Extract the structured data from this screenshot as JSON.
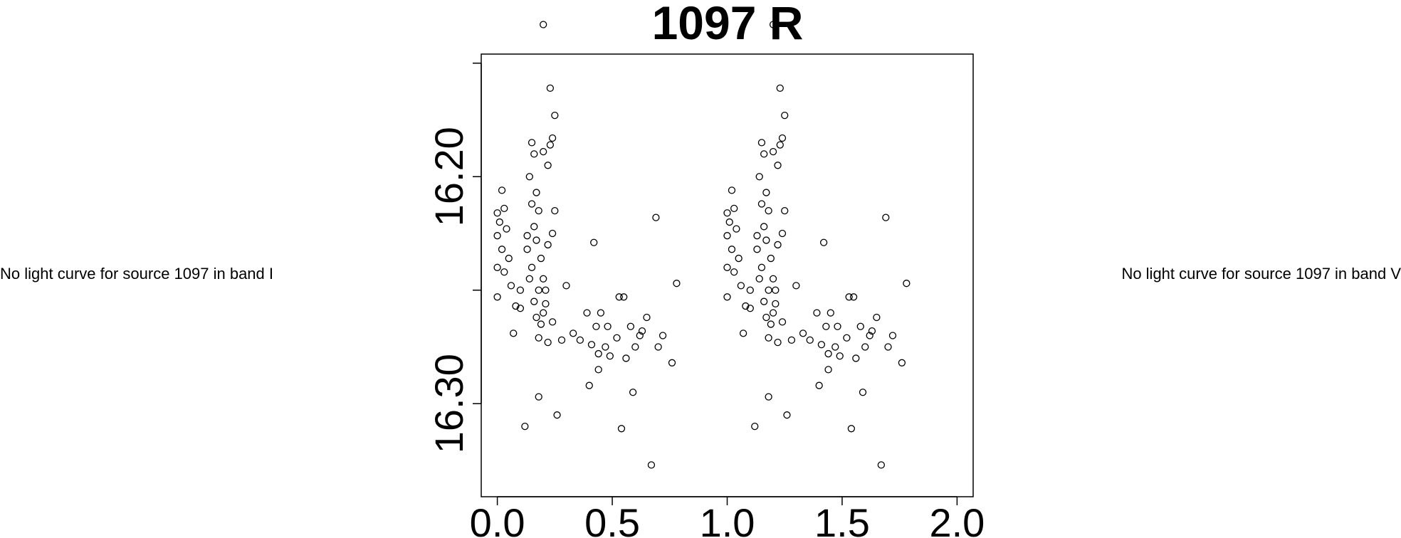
{
  "notes": {
    "left": "No light curve for source 1097 in band I",
    "right": "No light curve for source 1097 in band V"
  },
  "chart_data": {
    "type": "scatter",
    "title": "1097 R",
    "xlabel": "",
    "ylabel": "",
    "xlim": [
      -0.07,
      2.07
    ],
    "ylim": [
      16.341,
      16.146
    ],
    "y_inverted": true,
    "x_ticks": [
      "0.0",
      "0.5",
      "1.0",
      "1.5",
      "2.0"
    ],
    "x_tick_values": [
      0.0,
      0.5,
      1.0,
      1.5,
      2.0
    ],
    "y_ticks": [
      "16.20",
      "16.30"
    ],
    "y_tick_values": [
      16.2,
      16.3
    ],
    "y_minor_ticks": [
      16.15,
      16.25
    ],
    "grid": false,
    "marker": "open-circle",
    "phase_period": 1.0,
    "base_points": [
      [
        0.2,
        16.133
      ],
      [
        0.23,
        16.161
      ],
      [
        0.25,
        16.173
      ],
      [
        0.26,
        16.305
      ],
      [
        0.18,
        16.297
      ],
      [
        0.12,
        16.31
      ],
      [
        0.54,
        16.311
      ],
      [
        0.59,
        16.295
      ],
      [
        0.44,
        16.285
      ],
      [
        0.67,
        16.327
      ],
      [
        0.69,
        16.218
      ],
      [
        0.42,
        16.229
      ],
      [
        0.02,
        16.206
      ],
      [
        0.03,
        16.214
      ],
      [
        0.0,
        16.216
      ],
      [
        0.01,
        16.22
      ],
      [
        0.04,
        16.223
      ],
      [
        0.0,
        16.226
      ],
      [
        0.02,
        16.232
      ],
      [
        0.05,
        16.236
      ],
      [
        0.0,
        16.24
      ],
      [
        0.03,
        16.242
      ],
      [
        0.06,
        16.248
      ],
      [
        0.0,
        16.253
      ],
      [
        0.08,
        16.257
      ],
      [
        0.07,
        16.269
      ],
      [
        0.1,
        16.25
      ],
      [
        0.1,
        16.258
      ],
      [
        0.13,
        16.226
      ],
      [
        0.13,
        16.232
      ],
      [
        0.15,
        16.185
      ],
      [
        0.16,
        16.19
      ],
      [
        0.14,
        16.2
      ],
      [
        0.17,
        16.207
      ],
      [
        0.15,
        16.212
      ],
      [
        0.18,
        16.215
      ],
      [
        0.16,
        16.222
      ],
      [
        0.17,
        16.228
      ],
      [
        0.19,
        16.236
      ],
      [
        0.15,
        16.24
      ],
      [
        0.14,
        16.245
      ],
      [
        0.18,
        16.25
      ],
      [
        0.16,
        16.255
      ],
      [
        0.2,
        16.26
      ],
      [
        0.19,
        16.265
      ],
      [
        0.17,
        16.262
      ],
      [
        0.18,
        16.271
      ],
      [
        0.21,
        16.256
      ],
      [
        0.2,
        16.189
      ],
      [
        0.22,
        16.195
      ],
      [
        0.22,
        16.23
      ],
      [
        0.2,
        16.245
      ],
      [
        0.21,
        16.25
      ],
      [
        0.24,
        16.183
      ],
      [
        0.23,
        16.186
      ],
      [
        0.25,
        16.215
      ],
      [
        0.24,
        16.225
      ],
      [
        0.22,
        16.273
      ],
      [
        0.24,
        16.264
      ],
      [
        0.28,
        16.272
      ],
      [
        0.3,
        16.248
      ],
      [
        0.33,
        16.269
      ],
      [
        0.36,
        16.272
      ],
      [
        0.39,
        16.26
      ],
      [
        0.41,
        16.274
      ],
      [
        0.43,
        16.266
      ],
      [
        0.44,
        16.278
      ],
      [
        0.47,
        16.275
      ],
      [
        0.49,
        16.279
      ],
      [
        0.53,
        16.253
      ],
      [
        0.55,
        16.253
      ],
      [
        0.58,
        16.266
      ],
      [
        0.62,
        16.27
      ],
      [
        0.4,
        16.292
      ],
      [
        0.45,
        16.26
      ],
      [
        0.48,
        16.266
      ],
      [
        0.52,
        16.271
      ],
      [
        0.56,
        16.28
      ],
      [
        0.6,
        16.275
      ],
      [
        0.63,
        16.268
      ],
      [
        0.65,
        16.262
      ],
      [
        0.7,
        16.275
      ],
      [
        0.72,
        16.27
      ],
      [
        0.76,
        16.282
      ],
      [
        0.78,
        16.247
      ]
    ]
  }
}
